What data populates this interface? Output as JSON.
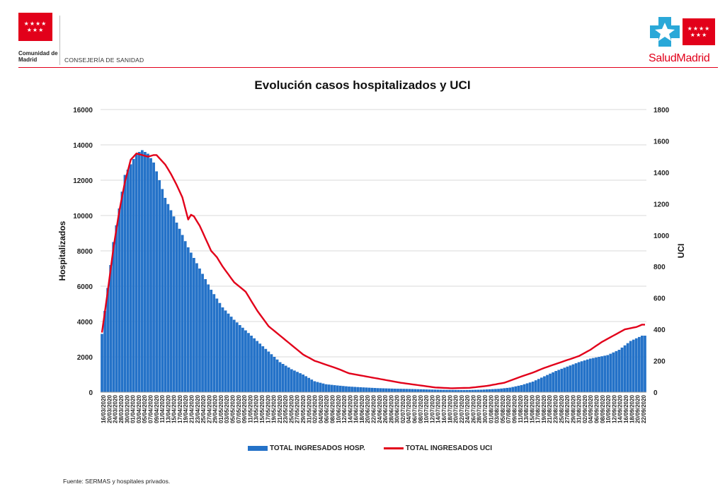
{
  "header": {
    "left_org": "Comunidad de Madrid",
    "left_dept": "CONSEJERÍA DE SANIDAD",
    "right_brand": "SaludMadrid"
  },
  "chart_data": {
    "type": "bar+line",
    "title": "Evolución casos hospitalizados y UCI",
    "ylabel_left": "Hospitalizados",
    "ylabel_right": "UCI",
    "ylim_left": [
      0,
      16000
    ],
    "ylim_right": [
      0,
      1800
    ],
    "yticks_left": [
      0,
      2000,
      4000,
      6000,
      8000,
      10000,
      12000,
      14000,
      16000
    ],
    "yticks_right": [
      0,
      200,
      400,
      600,
      800,
      1000,
      1200,
      1400,
      1600,
      1800
    ],
    "xtick_labels": [
      "16/03/2020",
      "20/03/2020",
      "24/03/2020",
      "28/03/2020",
      "30/03/2020",
      "01/04/2020",
      "03/04/2020",
      "05/04/2020",
      "07/04/2020",
      "09/04/2020",
      "11/04/2020",
      "13/04/2020",
      "15/04/2020",
      "17/04/2020",
      "19/04/2020",
      "21/04/2020",
      "23/04/2020",
      "25/04/2020",
      "27/04/2020",
      "29/04/2020",
      "01/05/2020",
      "03/05/2020",
      "05/05/2020",
      "07/05/2020",
      "09/05/2020",
      "11/05/2020",
      "13/05/2020",
      "15/05/2020",
      "17/05/2020",
      "19/05/2020",
      "21/05/2020",
      "23/05/2020",
      "25/05/2020",
      "27/05/2020",
      "29/05/2020",
      "31/05/2020",
      "02/06/2020",
      "04/06/2020",
      "06/06/2020",
      "08/06/2020",
      "10/06/2020",
      "12/06/2020",
      "14/06/2020",
      "16/06/2020",
      "18/06/2020",
      "20/06/2020",
      "22/06/2020",
      "24/06/2020",
      "26/06/2020",
      "28/06/2020",
      "30/06/2020",
      "02/07/2020",
      "04/07/2020",
      "06/07/2020",
      "08/07/2020",
      "10/07/2020",
      "12/07/2020",
      "14/07/2020",
      "16/07/2020",
      "18/07/2020",
      "20/07/2020",
      "22/07/2020",
      "24/07/2020",
      "26/07/2020",
      "28/07/2020",
      "30/07/2020",
      "01/08/2020",
      "03/08/2020",
      "05/08/2020",
      "07/08/2020",
      "09/08/2020",
      "11/08/2020",
      "13/08/2020",
      "15/08/2020",
      "17/08/2020",
      "19/08/2020",
      "21/08/2020",
      "23/08/2020",
      "25/08/2020",
      "27/08/2020",
      "29/08/2020",
      "31/08/2020",
      "02/09/2020",
      "04/09/2020",
      "06/09/2020",
      "08/09/2020",
      "10/09/2020",
      "12/09/2020",
      "14/09/2020",
      "16/09/2020",
      "18/09/2020",
      "20/09/2020",
      "22/09/2020"
    ],
    "series": [
      {
        "name": "TOTAL INGRESADOS HOSP.",
        "type": "bar",
        "axis": "left",
        "color": "#2472c8",
        "days_from_16_03_2020": [
          0,
          4,
          8,
          12,
          14,
          16,
          18,
          22,
          26,
          30,
          34,
          38,
          42,
          46,
          50,
          54,
          58,
          62,
          66,
          70,
          74,
          78,
          82,
          86,
          90,
          96,
          102,
          108,
          114,
          120,
          126,
          132,
          138,
          142,
          146,
          150,
          154,
          158,
          162,
          166,
          170,
          176,
          180,
          184,
          188
        ],
        "values": [
          3300,
          8500,
          12300,
          13500,
          13700,
          13500,
          13000,
          11000,
          9600,
          8200,
          7000,
          5800,
          4800,
          4100,
          3500,
          2900,
          2300,
          1700,
          1300,
          1000,
          620,
          450,
          380,
          320,
          280,
          230,
          200,
          180,
          150,
          130,
          120,
          140,
          190,
          260,
          400,
          600,
          900,
          1200,
          1450,
          1700,
          1900,
          2100,
          2400,
          2900,
          3200
        ]
      },
      {
        "name": "TOTAL INGRESADOS UCI",
        "type": "line",
        "axis": "right",
        "color": "#e2001a",
        "days_from_16_03_2020": [
          0,
          2,
          4,
          6,
          8,
          10,
          12,
          14,
          16,
          18,
          19,
          20,
          22,
          24,
          26,
          28,
          30,
          31,
          32,
          34,
          36,
          38,
          40,
          42,
          46,
          50,
          54,
          58,
          62,
          66,
          70,
          74,
          78,
          82,
          86,
          92,
          98,
          104,
          110,
          116,
          122,
          128,
          134,
          140,
          146,
          150,
          154,
          158,
          162,
          166,
          170,
          174,
          178,
          182,
          186,
          188
        ],
        "values": [
          380,
          640,
          920,
          1150,
          1340,
          1480,
          1520,
          1510,
          1500,
          1510,
          1510,
          1490,
          1450,
          1390,
          1320,
          1240,
          1100,
          1130,
          1120,
          1060,
          980,
          900,
          860,
          800,
          700,
          640,
          520,
          420,
          360,
          300,
          240,
          200,
          175,
          150,
          120,
          100,
          80,
          60,
          45,
          30,
          25,
          28,
          40,
          60,
          100,
          125,
          155,
          180,
          205,
          230,
          270,
          320,
          360,
          400,
          415,
          430
        ]
      }
    ],
    "legend_placement": "bottom",
    "grid": "horizontal"
  },
  "source": "Fuente: SERMAS y hospitales privados."
}
